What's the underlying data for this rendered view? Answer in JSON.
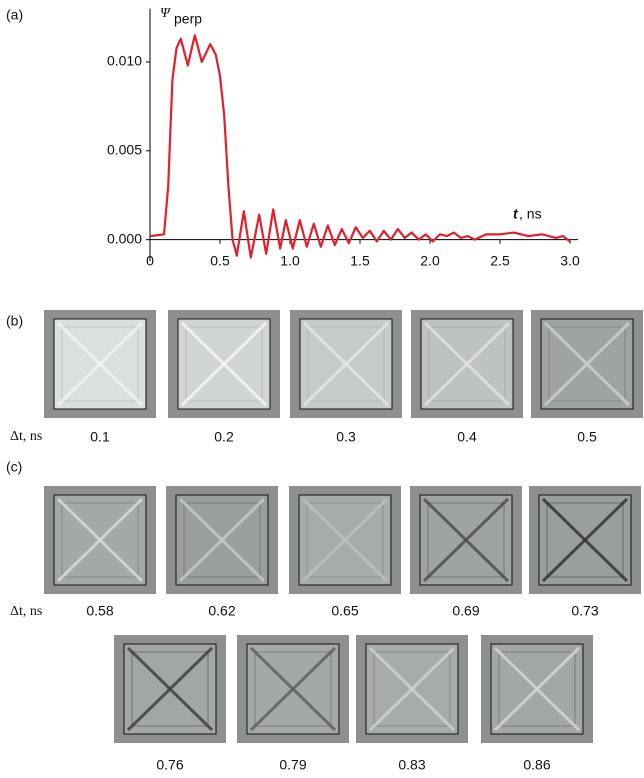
{
  "chart_data": {
    "type": "line",
    "panel_label": "(a)",
    "y_label": "Ψ",
    "y_label_subscript": "perp",
    "x_label": "t",
    "x_label_unit": ", ns",
    "xlim": [
      0,
      3
    ],
    "ylim": [
      -0.0012,
      0.013
    ],
    "xticks": [
      {
        "value": 0,
        "label": "0"
      },
      0.5,
      {
        "value": 1,
        "label": "1.0"
      },
      1.5,
      {
        "value": 2,
        "label": "2.0"
      },
      2.5,
      {
        "value": 3,
        "label": "3.0"
      }
    ],
    "yticks": [
      {
        "value": 0,
        "label": "0.000"
      },
      {
        "value": 0.005,
        "label": "0.005"
      },
      {
        "value": 0.01,
        "label": "0.010"
      }
    ],
    "x": [
      0,
      0.1,
      0.13,
      0.16,
      0.19,
      0.22,
      0.27,
      0.32,
      0.37,
      0.43,
      0.47,
      0.5,
      0.53,
      0.56,
      0.59,
      0.62,
      0.67,
      0.72,
      0.78,
      0.83,
      0.88,
      0.93,
      0.97,
      1.02,
      1.07,
      1.12,
      1.17,
      1.22,
      1.27,
      1.32,
      1.37,
      1.42,
      1.47,
      1.52,
      1.57,
      1.62,
      1.67,
      1.72,
      1.77,
      1.82,
      1.87,
      1.92,
      1.97,
      2.02,
      2.07,
      2.12,
      2.17,
      2.22,
      2.27,
      2.32,
      2.4,
      2.5,
      2.6,
      2.7,
      2.8,
      2.9,
      2.95,
      3.0
    ],
    "series": [
      {
        "color": "#e0202a",
        "values": [
          0.0002,
          0.0003,
          0.003,
          0.009,
          0.0108,
          0.0113,
          0.0098,
          0.0115,
          0.01,
          0.011,
          0.0104,
          0.0092,
          0.007,
          0.003,
          0.0,
          -0.0009,
          0.0016,
          -0.001,
          0.0014,
          -0.0008,
          0.0017,
          -0.0005,
          0.0011,
          -0.0005,
          0.0011,
          -0.0004,
          0.0009,
          -0.0004,
          0.0008,
          -0.0003,
          0.0006,
          -0.0002,
          0.0007,
          0.0001,
          0.0005,
          -0.0001,
          0.0005,
          0.0,
          0.0006,
          0.0001,
          0.0004,
          0.0,
          0.0003,
          -0.0001,
          0.0003,
          0.0002,
          0.0004,
          0.0001,
          0.0002,
          0.0,
          0.0003,
          0.0003,
          0.0004,
          0.0002,
          0.0003,
          0.0001,
          0.0002,
          -0.0001
        ]
      }
    ]
  },
  "panel_b": {
    "label": "(b)",
    "row_label": "Δt, ns",
    "tiles": [
      "0.1",
      "0.2",
      "0.3",
      "0.4",
      "0.5"
    ]
  },
  "panel_c": {
    "label": "(c)",
    "row_label": "Δt, ns",
    "tiles_row1": [
      "0.58",
      "0.62",
      "0.65",
      "0.69",
      "0.73"
    ],
    "tiles_row2": [
      "0.76",
      "0.79",
      "0.83",
      "0.86"
    ]
  }
}
